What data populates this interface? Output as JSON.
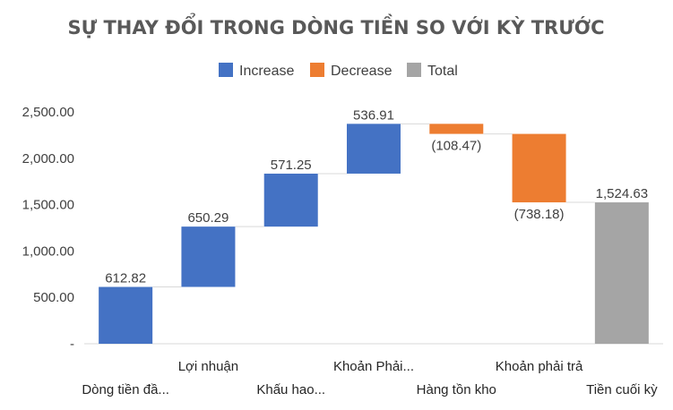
{
  "chart_data": {
    "type": "waterfall",
    "title": "SỰ THAY ĐỔI TRONG DÒNG TIỀN SO VỚI KỲ TRƯỚC",
    "legend": [
      {
        "label": "Increase",
        "color": "#4472C4"
      },
      {
        "label": "Decrease",
        "color": "#ED7D31"
      },
      {
        "label": "Total",
        "color": "#A5A5A5"
      }
    ],
    "legend_position": "top",
    "categories": [
      "Dòng tiền đầ...",
      "Lợi nhuận",
      "Khấu hao...",
      "Khoản Phải...",
      "Hàng tồn kho",
      "Khoản phải trả",
      "Tiền cuối kỳ"
    ],
    "values": [
      612.82,
      650.29,
      571.25,
      536.91,
      -108.47,
      -738.18,
      1524.63
    ],
    "kinds": [
      "increase",
      "increase",
      "increase",
      "increase",
      "decrease",
      "decrease",
      "total"
    ],
    "data_labels": [
      "612.82",
      "650.29",
      "571.25",
      "536.91",
      "(108.47)",
      "(738.18)",
      "1,524.63"
    ],
    "y_ticks": [
      "-",
      "500.00",
      "1,000.00",
      "1,500.00",
      "2,000.00",
      "2,500.00"
    ],
    "ylim": [
      0,
      2500
    ],
    "grid": false
  }
}
